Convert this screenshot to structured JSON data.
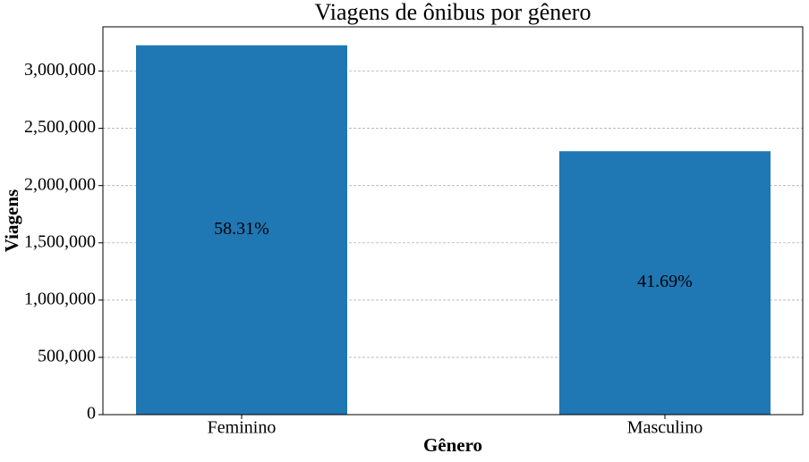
{
  "chart_data": {
    "type": "bar",
    "title": "Viagens de ônibus por gênero",
    "x_label": "Gênero",
    "y_label": "Viagens",
    "categories": [
      "Feminino",
      "Masculino"
    ],
    "values": [
      3225000,
      2300000
    ],
    "annotations": [
      "58.31%",
      "41.69%"
    ],
    "color": "#1f77b4",
    "ylim": [
      0,
      3386250
    ],
    "yticks": [
      0,
      {
        "value": 500000,
        "label": "500,000"
      },
      {
        "value": 1000000,
        "label": "1,000,000"
      },
      {
        "value": 1500000,
        "label": "1,500,000"
      },
      {
        "value": 2000000,
        "label": "2,000,000"
      },
      {
        "value": 2500000,
        "label": "2,500,000"
      },
      {
        "value": 3000000,
        "label": "3,000,000"
      }
    ],
    "grid": true
  }
}
